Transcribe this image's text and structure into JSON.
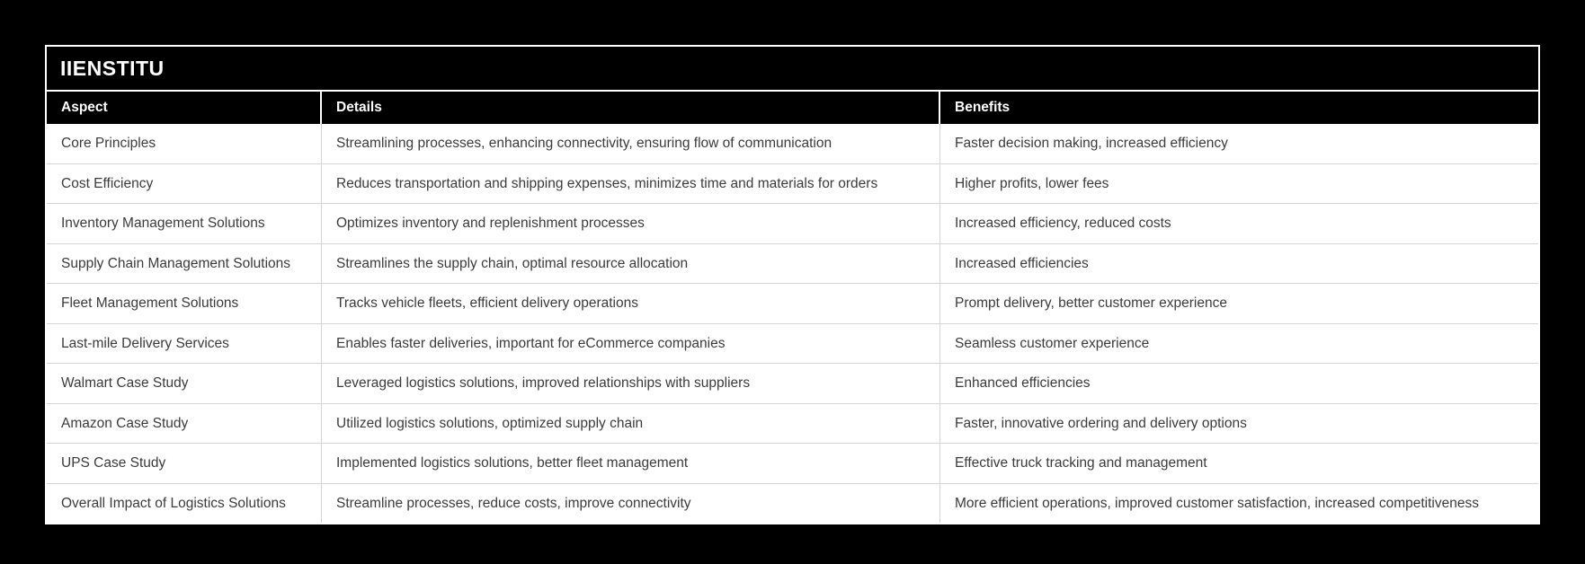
{
  "colors": {
    "page_bg": "#000000",
    "card_border": "#ffffff",
    "title_bg": "#000000",
    "title_text": "#ffffff",
    "header_bg": "#000000",
    "header_text": "#ffffff",
    "cell_bg": "#ffffff",
    "cell_text": "#3b3b3b",
    "grid_line": "#d4d4d4"
  },
  "chart_data": {
    "type": "table",
    "title": "IIENSTITU",
    "columns": [
      "Aspect",
      "Details",
      "Benefits"
    ],
    "rows": [
      [
        "Core Principles",
        "Streamlining processes, enhancing connectivity, ensuring flow of communication",
        "Faster decision making, increased efficiency"
      ],
      [
        "Cost Efficiency",
        "Reduces transportation and shipping expenses, minimizes time and materials for orders",
        "Higher profits, lower fees"
      ],
      [
        "Inventory Management Solutions",
        "Optimizes inventory and replenishment processes",
        "Increased efficiency, reduced costs"
      ],
      [
        "Supply Chain Management Solutions",
        "Streamlines the supply chain, optimal resource allocation",
        "Increased efficiencies"
      ],
      [
        "Fleet Management Solutions",
        "Tracks vehicle fleets, efficient delivery operations",
        "Prompt delivery, better customer experience"
      ],
      [
        "Last-mile Delivery Services",
        "Enables faster deliveries, important for eCommerce companies",
        "Seamless customer experience"
      ],
      [
        "Walmart Case Study",
        "Leveraged logistics solutions, improved relationships with suppliers",
        "Enhanced efficiencies"
      ],
      [
        "Amazon Case Study",
        "Utilized logistics solutions, optimized supply chain",
        "Faster, innovative ordering and delivery options"
      ],
      [
        "UPS Case Study",
        "Implemented logistics solutions, better fleet management",
        "Effective truck tracking and management"
      ],
      [
        "Overall Impact of Logistics Solutions",
        "Streamline processes, reduce costs, improve connectivity",
        "More efficient operations, improved customer satisfaction, increased competitiveness"
      ]
    ]
  }
}
